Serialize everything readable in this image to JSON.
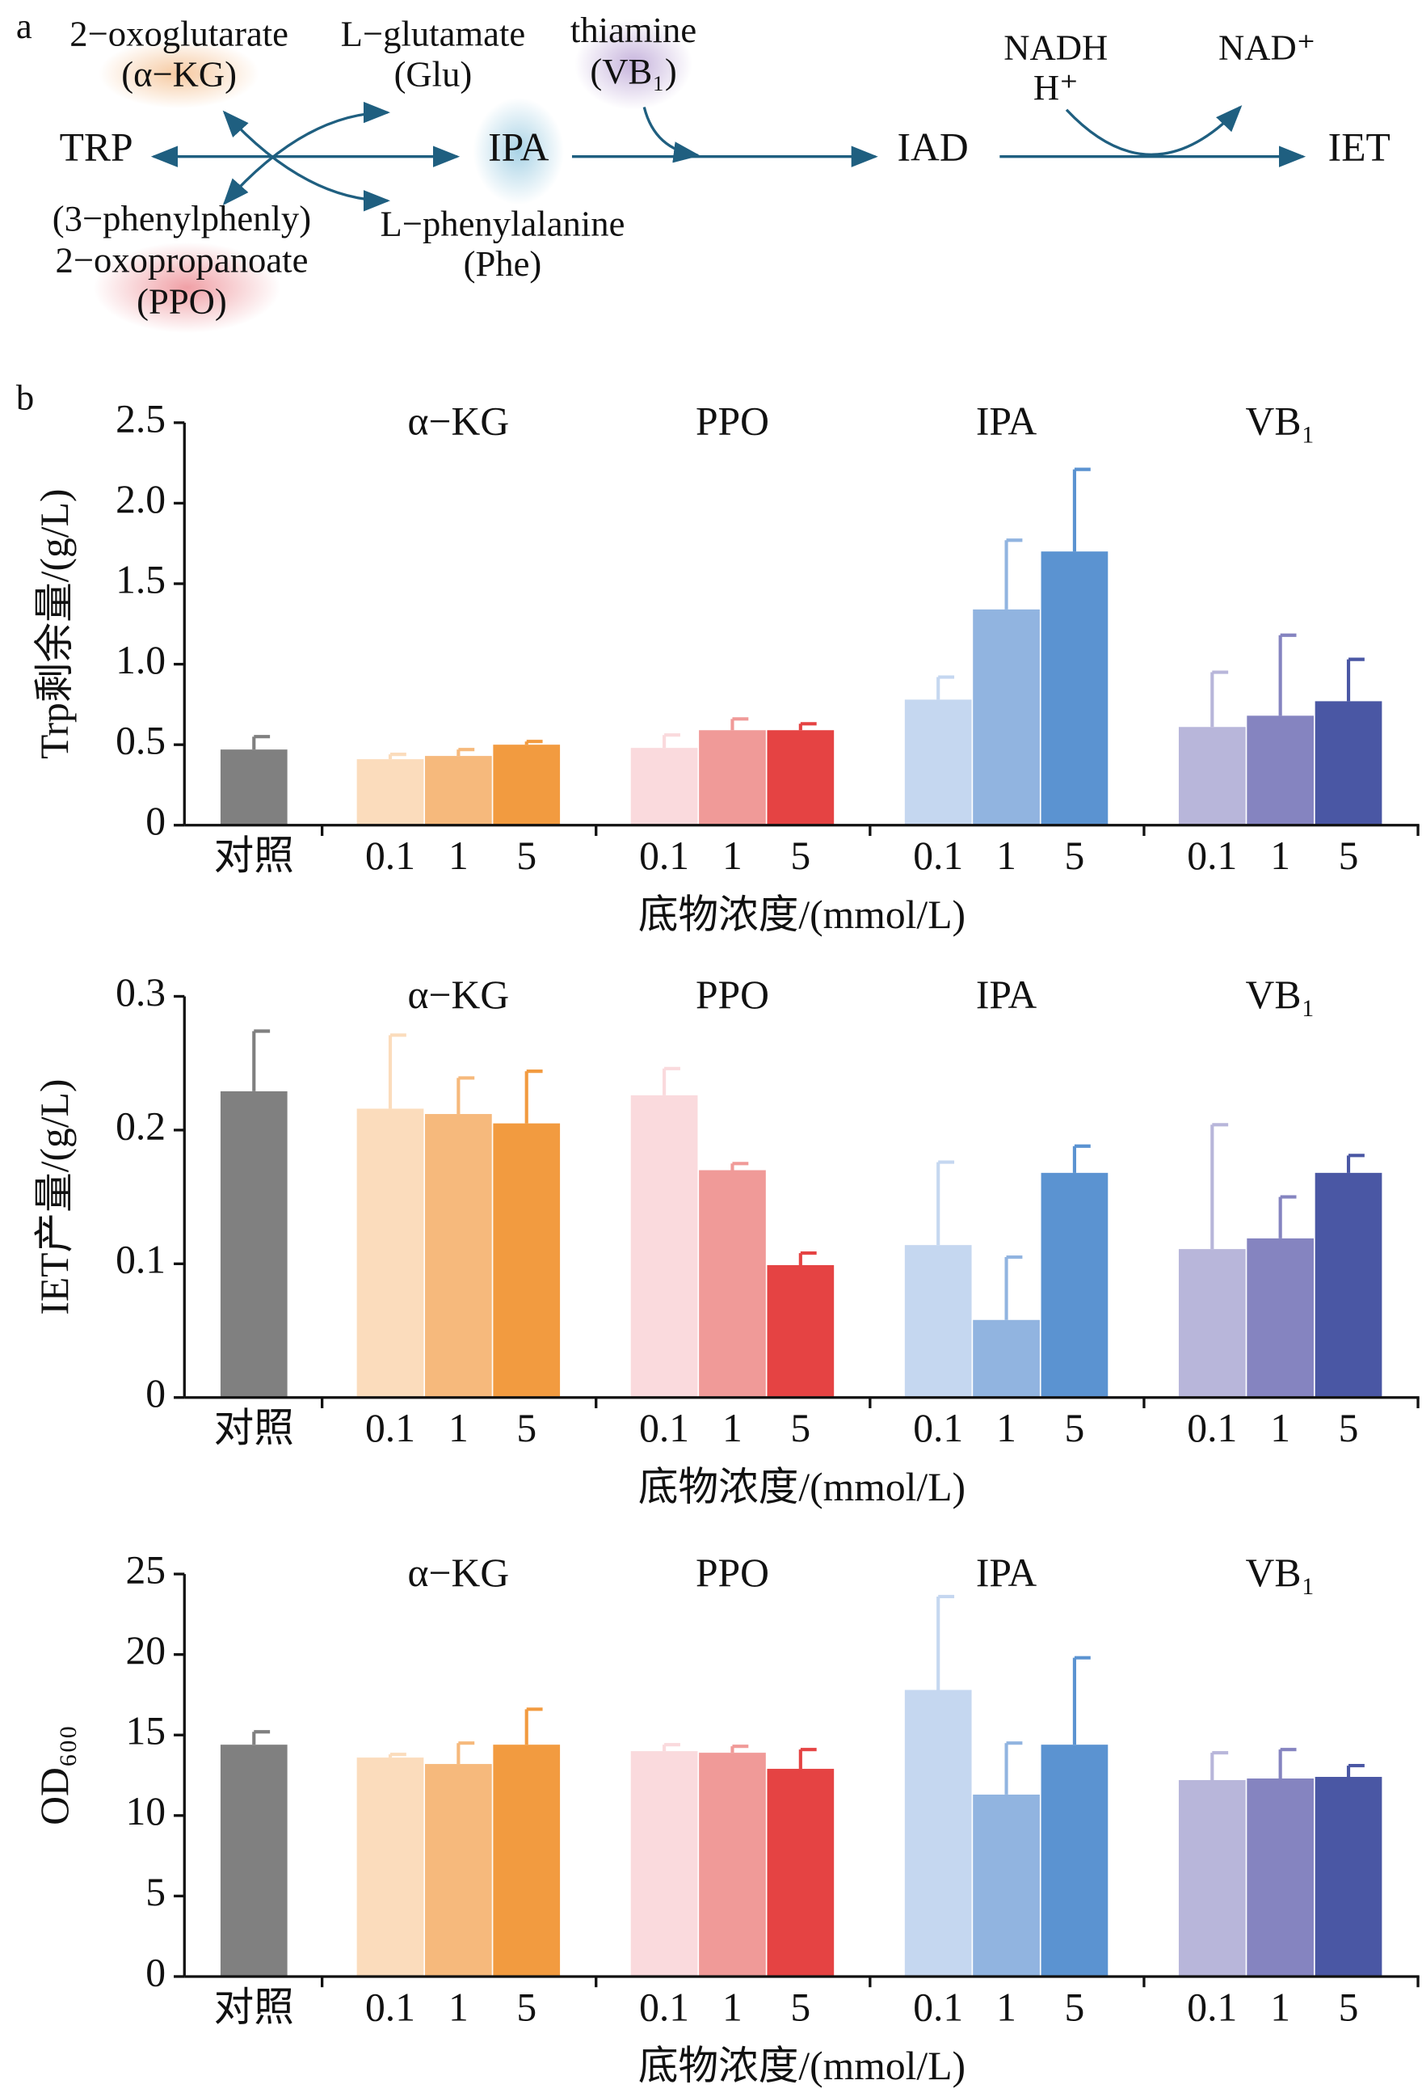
{
  "diagram": {
    "panel_label": "a",
    "nodes": [
      "TRP",
      "IPA",
      "IAD",
      "IET"
    ],
    "alpha_kg": [
      "2−oxoglutarate",
      "(α−KG)"
    ],
    "glu": [
      "L−glutamate",
      "(Glu)"
    ],
    "ppo": [
      "(3−phenylphenly)",
      "2−oxopropanoate",
      "(PPO)"
    ],
    "phe": [
      "L−phenylalanine",
      "(Phe)"
    ],
    "thiamine": [
      "thiamine",
      "(VB₁)"
    ],
    "nadh": [
      "NADH",
      "H⁺"
    ],
    "nad": "NAD⁺"
  },
  "panel_label_b": "b",
  "chart_data": [
    {
      "type": "bar",
      "ylabel": "Trp剩余量/(g/L)",
      "xlabel": "底物浓度/(mmol/L)",
      "groups": [
        "α−KG",
        "PPO",
        "IPA",
        "VB₁"
      ],
      "categories": [
        "对照",
        "0.1",
        "1",
        "5",
        "0.1",
        "1",
        "5",
        "0.1",
        "1",
        "5",
        "0.1",
        "1",
        "5"
      ],
      "values": [
        0.47,
        0.41,
        0.43,
        0.5,
        0.48,
        0.59,
        0.59,
        0.78,
        1.34,
        1.7,
        0.61,
        0.68,
        0.77
      ],
      "errors": [
        0.08,
        0.03,
        0.04,
        0.02,
        0.08,
        0.07,
        0.04,
        0.14,
        0.43,
        0.51,
        0.34,
        0.5,
        0.26
      ],
      "colors": [
        "#808080",
        "#fbdcbc",
        "#f6b97c",
        "#f29b40",
        "#fadadd",
        "#f09a98",
        "#e54343",
        "#c5d7f0",
        "#91b4e0",
        "#5b93d1",
        "#b8b6da",
        "#8584c0",
        "#4a57a4"
      ],
      "ylim": [
        0,
        2.5
      ],
      "yticks": [
        0,
        {
          "value": 0.5,
          "label": "0.5"
        },
        {
          "value": 1,
          "label": "1.0"
        },
        {
          "value": 1.5,
          "label": "1.5"
        },
        {
          "value": 2,
          "label": "2.0"
        },
        {
          "value": 2.5,
          "label": "2.5"
        }
      ]
    },
    {
      "type": "bar",
      "ylabel": "IET产量/(g/L)",
      "xlabel": "底物浓度/(mmol/L)",
      "groups": [
        "α−KG",
        "PPO",
        "IPA",
        "VB₁"
      ],
      "categories": [
        "对照",
        "0.1",
        "1",
        "5",
        "0.1",
        "1",
        "5",
        "0.1",
        "1",
        "5",
        "0.1",
        "1",
        "5"
      ],
      "values": [
        0.229,
        0.216,
        0.212,
        0.205,
        0.226,
        0.17,
        0.099,
        0.114,
        0.058,
        0.168,
        0.111,
        0.119,
        0.168
      ],
      "errors": [
        0.045,
        0.055,
        0.027,
        0.039,
        0.02,
        0.005,
        0.009,
        0.062,
        0.047,
        0.02,
        0.093,
        0.031,
        0.013
      ],
      "colors": [
        "#808080",
        "#fbdcbc",
        "#f6b97c",
        "#f29b40",
        "#fadadd",
        "#f09a98",
        "#e54343",
        "#c5d7f0",
        "#91b4e0",
        "#5b93d1",
        "#b8b6da",
        "#8584c0",
        "#4a57a4"
      ],
      "ylim": [
        0,
        0.3
      ],
      "yticks": [
        0,
        0.1,
        0.2,
        0.3
      ]
    },
    {
      "type": "bar",
      "ylabel": "OD₆₀₀",
      "xlabel": "底物浓度/(mmol/L)",
      "groups": [
        "α−KG",
        "PPO",
        "IPA",
        "VB₁"
      ],
      "categories": [
        "对照",
        "0.1",
        "1",
        "5",
        "0.1",
        "1",
        "5",
        "0.1",
        "1",
        "5",
        "0.1",
        "1",
        "5"
      ],
      "values": [
        14.4,
        13.6,
        13.2,
        14.4,
        14.0,
        13.9,
        12.9,
        17.8,
        11.3,
        14.4,
        12.2,
        12.3,
        12.4
      ],
      "errors": [
        0.8,
        0.2,
        1.3,
        2.2,
        0.4,
        0.4,
        1.2,
        5.8,
        3.2,
        5.4,
        1.7,
        1.8,
        0.7
      ],
      "colors": [
        "#808080",
        "#fbdcbc",
        "#f6b97c",
        "#f29b40",
        "#fadadd",
        "#f09a98",
        "#e54343",
        "#c5d7f0",
        "#91b4e0",
        "#5b93d1",
        "#b8b6da",
        "#8584c0",
        "#4a57a4"
      ],
      "ylim": [
        0,
        25
      ],
      "yticks": [
        0,
        5,
        10,
        15,
        20,
        25
      ]
    }
  ]
}
